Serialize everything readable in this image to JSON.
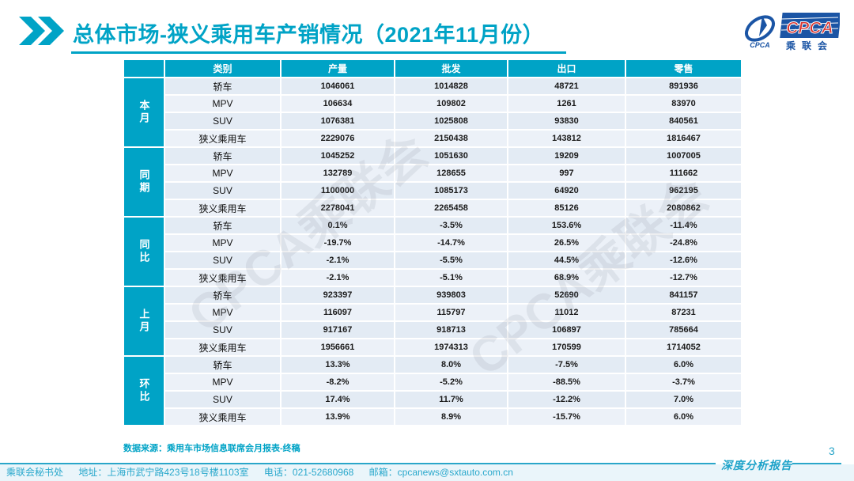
{
  "slide": {
    "title": "总体市场-狭义乘用车产销情况（2021年11月份）",
    "watermark": "CPCA乘联会",
    "source_note": "数据来源：乘用车市场信息联席会月报表-终稿",
    "logo": {
      "acronym": "CPCA",
      "name_cn": "乘联会",
      "swoosh_caption": "CPCA"
    },
    "footer": {
      "org": "乘联会秘书处",
      "address": "地址：上海市武宁路423号18号楼1103室",
      "phone": "电话：021-52680968",
      "email": "邮箱：cpcanews@sxtauto.com.cn",
      "report_label": "深度分析报告",
      "page_number": "3"
    },
    "colors": {
      "accent_teal": "#00a3c6",
      "row_even": "#e3ebf4",
      "row_odd": "#ecf1f8",
      "logo_blue": "#1b55a5",
      "logo_red": "#d9332e"
    }
  },
  "table": {
    "columns": [
      "类别",
      "产量",
      "批发",
      "出口",
      "零售"
    ],
    "groups": [
      {
        "label": "本月",
        "rows": [
          {
            "category": "轿车",
            "values": [
              "1046061",
              "1014828",
              "48721",
              "891936"
            ]
          },
          {
            "category": "MPV",
            "values": [
              "106634",
              "109802",
              "1261",
              "83970"
            ]
          },
          {
            "category": "SUV",
            "values": [
              "1076381",
              "1025808",
              "93830",
              "840561"
            ]
          },
          {
            "category": "狭义乘用车",
            "values": [
              "2229076",
              "2150438",
              "143812",
              "1816467"
            ]
          }
        ]
      },
      {
        "label": "同期",
        "rows": [
          {
            "category": "轿车",
            "values": [
              "1045252",
              "1051630",
              "19209",
              "1007005"
            ]
          },
          {
            "category": "MPV",
            "values": [
              "132789",
              "128655",
              "997",
              "111662"
            ]
          },
          {
            "category": "SUV",
            "values": [
              "1100000",
              "1085173",
              "64920",
              "962195"
            ]
          },
          {
            "category": "狭义乘用车",
            "values": [
              "2278041",
              "2265458",
              "85126",
              "2080862"
            ]
          }
        ]
      },
      {
        "label": "同比",
        "rows": [
          {
            "category": "轿车",
            "values": [
              "0.1%",
              "-3.5%",
              "153.6%",
              "-11.4%"
            ]
          },
          {
            "category": "MPV",
            "values": [
              "-19.7%",
              "-14.7%",
              "26.5%",
              "-24.8%"
            ]
          },
          {
            "category": "SUV",
            "values": [
              "-2.1%",
              "-5.5%",
              "44.5%",
              "-12.6%"
            ]
          },
          {
            "category": "狭义乘用车",
            "values": [
              "-2.1%",
              "-5.1%",
              "68.9%",
              "-12.7%"
            ]
          }
        ]
      },
      {
        "label": "上月",
        "rows": [
          {
            "category": "轿车",
            "values": [
              "923397",
              "939803",
              "52690",
              "841157"
            ]
          },
          {
            "category": "MPV",
            "values": [
              "116097",
              "115797",
              "11012",
              "87231"
            ]
          },
          {
            "category": "SUV",
            "values": [
              "917167",
              "918713",
              "106897",
              "785664"
            ]
          },
          {
            "category": "狭义乘用车",
            "values": [
              "1956661",
              "1974313",
              "170599",
              "1714052"
            ]
          }
        ]
      },
      {
        "label": "环比",
        "rows": [
          {
            "category": "轿车",
            "values": [
              "13.3%",
              "8.0%",
              "-7.5%",
              "6.0%"
            ]
          },
          {
            "category": "MPV",
            "values": [
              "-8.2%",
              "-5.2%",
              "-88.5%",
              "-3.7%"
            ]
          },
          {
            "category": "SUV",
            "values": [
              "17.4%",
              "11.7%",
              "-12.2%",
              "7.0%"
            ]
          },
          {
            "category": "狭义乘用车",
            "values": [
              "13.9%",
              "8.9%",
              "-15.7%",
              "6.0%"
            ]
          }
        ]
      }
    ]
  },
  "chart_data": {
    "type": "table",
    "title": "总体市场-狭义乘用车产销情况（2021年11月份）",
    "columns": [
      "类别",
      "产量",
      "批发",
      "出口",
      "零售"
    ],
    "row_groups": [
      "本月",
      "同期",
      "同比",
      "上月",
      "环比"
    ]
  }
}
